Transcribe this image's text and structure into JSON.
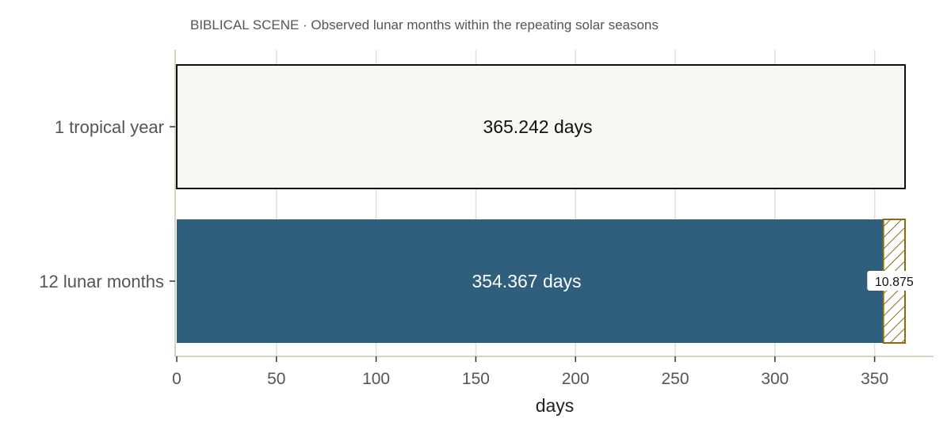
{
  "chart_data": {
    "type": "bar",
    "orientation": "horizontal",
    "title": "BIBLICAL SCENE · Observed lunar months within the repeating solar seasons",
    "xlabel": "days",
    "ylabel": "",
    "xlim": [
      0,
      380
    ],
    "xticks": [
      0,
      50,
      100,
      150,
      200,
      250,
      300,
      350
    ],
    "grid": true,
    "categories": [
      "1 tropical year",
      "12 lunar months"
    ],
    "values": [
      365.242,
      354.367
    ],
    "bar_labels": [
      "365.242 days",
      "354.367 days"
    ],
    "gap": {
      "category": "12 lunar months",
      "start": 354.367,
      "value": 10.875,
      "label": "10.875",
      "style": "hatched"
    },
    "colors": {
      "tropical_year_fill": "#f8f7f2",
      "tropical_year_stroke": "#111111",
      "lunar_fill": "#2f5f7c",
      "gap_stroke": "#8a6d12",
      "grid": "#e2e0d3",
      "axis": "#d8d4c4"
    }
  }
}
